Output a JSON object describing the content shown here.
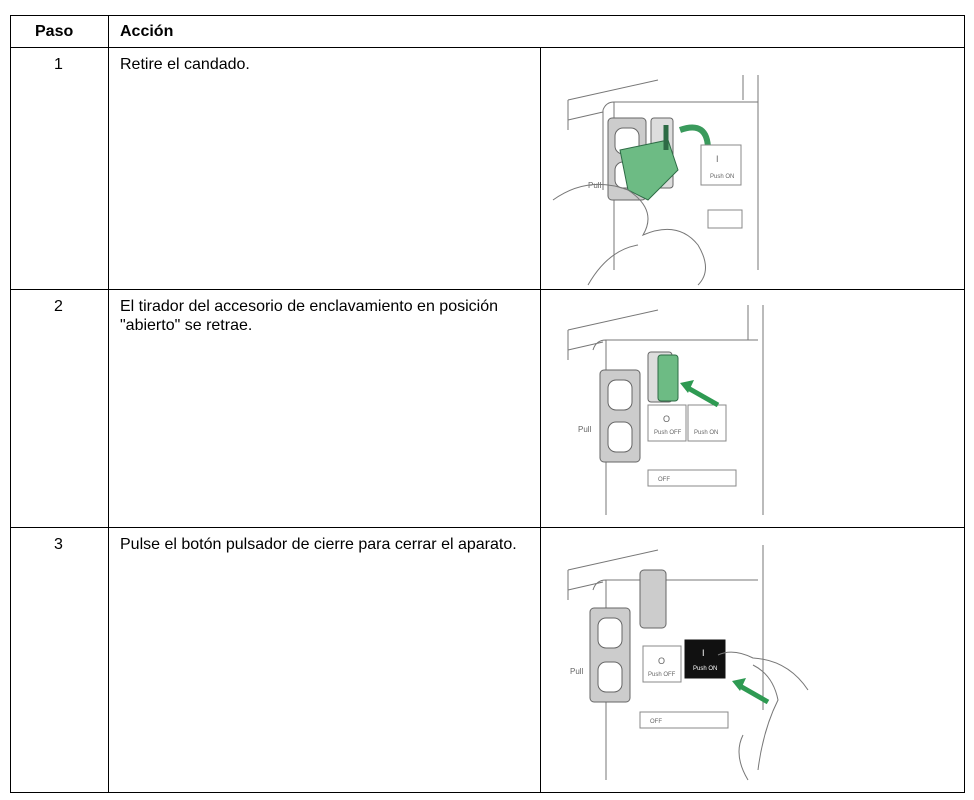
{
  "table": {
    "header": [
      "Paso",
      "Acción"
    ],
    "rows": [
      {
        "step": "1",
        "action": "Retire el candado.",
        "figure_labels": [
          "Pull",
          "I",
          "Push ON"
        ]
      },
      {
        "step": "2",
        "action": "El tirador del accesorio de enclavamiento en posición \"abierto\" se retrae.",
        "figure_labels": [
          "Pull",
          "O",
          "Push OFF",
          "Push ON",
          "OFF"
        ]
      },
      {
        "step": "3",
        "action": "Pulse el botón pulsador de cierre para cerrar el aparato.",
        "figure_labels": [
          "Pull",
          "O",
          "Push OFF",
          "I",
          "Push ON",
          "OFF"
        ]
      }
    ]
  }
}
